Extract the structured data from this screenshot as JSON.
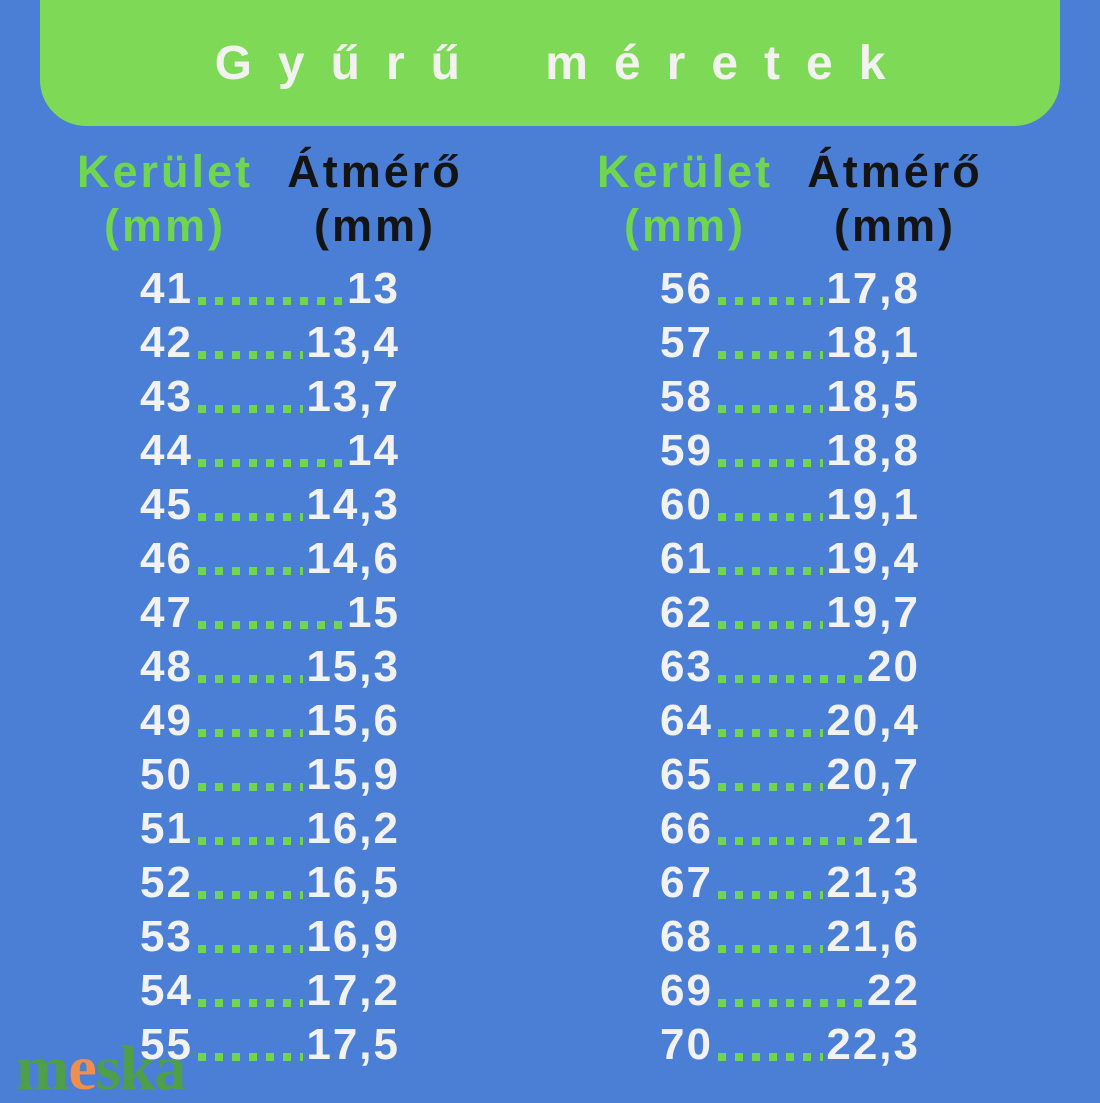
{
  "title": "Gyűrű méretek",
  "colors": {
    "background": "#4a7fd5",
    "banner_green": "#7ed957",
    "accent_green": "#70d64f",
    "text_white": "#f2f2f2",
    "text_black": "#141414",
    "logo_green": "#4f9e49",
    "logo_orange": "#ef8e4f"
  },
  "table": {
    "columns": [
      {
        "label": "Kerület",
        "unit": "(mm)"
      },
      {
        "label": "Átmérő",
        "unit": "(mm)"
      }
    ],
    "groups": [
      {
        "rows": [
          [
            "41",
            "13"
          ],
          [
            "42",
            "13,4"
          ],
          [
            "43",
            "13,7"
          ],
          [
            "44",
            "14"
          ],
          [
            "45",
            "14,3"
          ],
          [
            "46",
            "14,6"
          ],
          [
            "47",
            "15"
          ],
          [
            "48",
            "15,3"
          ],
          [
            "49",
            "15,6"
          ],
          [
            "50",
            "15,9"
          ],
          [
            "51",
            "16,2"
          ],
          [
            "52",
            "16,5"
          ],
          [
            "53",
            "16,9"
          ],
          [
            "54",
            "17,2"
          ],
          [
            "55",
            "17,5"
          ]
        ]
      },
      {
        "rows": [
          [
            "56",
            "17,8"
          ],
          [
            "57",
            "18,1"
          ],
          [
            "58",
            "18,5"
          ],
          [
            "59",
            "18,8"
          ],
          [
            "60",
            "19,1"
          ],
          [
            "61",
            "19,4"
          ],
          [
            "62",
            "19,7"
          ],
          [
            "63",
            "20"
          ],
          [
            "64",
            "20,4"
          ],
          [
            "65",
            "20,7"
          ],
          [
            "66",
            "21"
          ],
          [
            "67",
            "21,3"
          ],
          [
            "68",
            "21,6"
          ],
          [
            "69",
            "22"
          ],
          [
            "70",
            "22,3"
          ]
        ]
      }
    ]
  },
  "logo": {
    "pre": "m",
    "accent": "e",
    "post": "ska"
  }
}
